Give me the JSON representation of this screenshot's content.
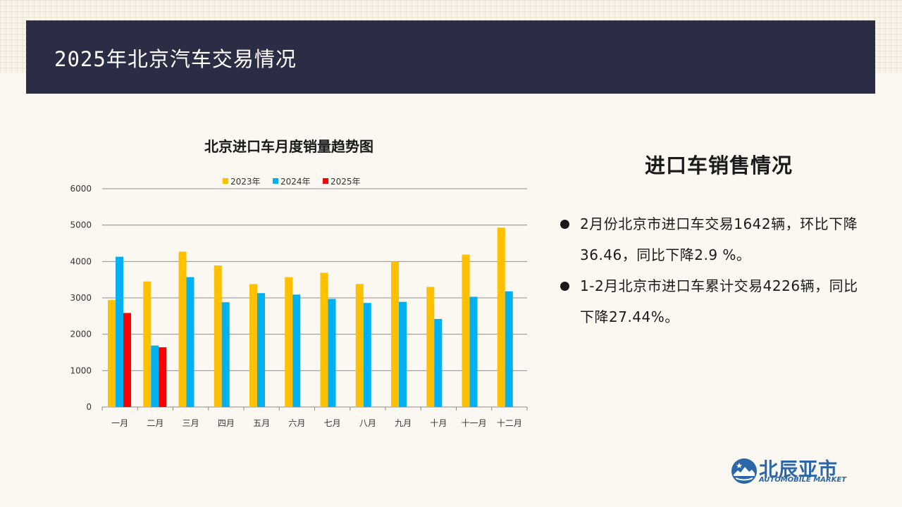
{
  "header": {
    "title": "2025年北京汽车交易情况"
  },
  "chart_data": {
    "type": "bar",
    "title": "北京进口车月度销量趋势图",
    "categories": [
      "一月",
      "二月",
      "三月",
      "四月",
      "五月",
      "六月",
      "七月",
      "八月",
      "九月",
      "十月",
      "十一月",
      "十二月"
    ],
    "series": [
      {
        "name": "2023年",
        "color": "#ffc000",
        "values": [
          2940,
          3450,
          4270,
          3890,
          3380,
          3570,
          3690,
          3380,
          4000,
          3300,
          4190,
          4930
        ]
      },
      {
        "name": "2024年",
        "color": "#00b0f0",
        "values": [
          4130,
          1690,
          3570,
          2880,
          3130,
          3090,
          2970,
          2860,
          2890,
          2420,
          3030,
          3180
        ]
      },
      {
        "name": "2025年",
        "color": "#ff0000",
        "values": [
          2584,
          1642,
          null,
          null,
          null,
          null,
          null,
          null,
          null,
          null,
          null,
          null
        ]
      }
    ],
    "yticks": [
      "0",
      "1000",
      "2000",
      "3000",
      "4000",
      "5000",
      "6000"
    ],
    "ylim": [
      0,
      6000
    ],
    "legend": "top",
    "grid": true
  },
  "right_panel": {
    "title": "进口车销售情况",
    "bullets": [
      "2月份北京市进口车交易1642辆，环比下降36.46，同比下降2.9 %。",
      "1-2月北京市进口车累计交易4226辆，同比下降27.44%。"
    ]
  },
  "logo": {
    "name": "北辰亚市",
    "subtitle": "AUTOMOBILE MARKET"
  }
}
